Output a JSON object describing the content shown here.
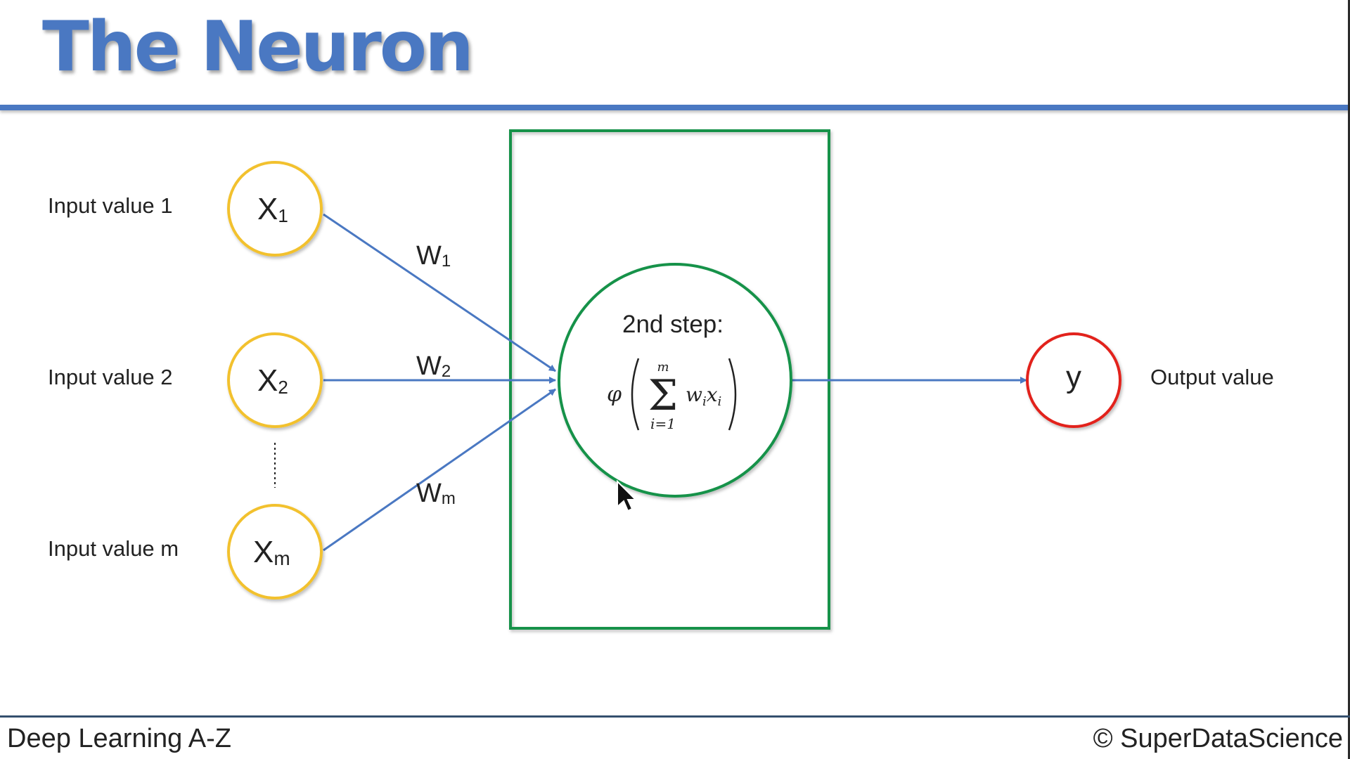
{
  "title": "The Neuron",
  "inputs": [
    {
      "label": "Input value 1",
      "var": "X",
      "sub": "1",
      "weight": "W",
      "weight_sub": "1"
    },
    {
      "label": "Input value 2",
      "var": "X",
      "sub": "2",
      "weight": "W",
      "weight_sub": "2"
    },
    {
      "label": "Input value m",
      "var": "X",
      "sub": "m",
      "weight": "W",
      "weight_sub": "m"
    }
  ],
  "neuron": {
    "step_label": "2nd step:",
    "formula": {
      "phi": "φ",
      "sigma": "Σ",
      "upper": "m",
      "lower": "i=1",
      "term_w": "w",
      "term_w_sub": "i",
      "term_x": "x",
      "term_x_sub": "i"
    }
  },
  "output": {
    "symbol": "y",
    "label": "Output value"
  },
  "footer": {
    "left": "Deep Learning A-Z",
    "right": "© SuperDataScience"
  },
  "colors": {
    "title": "#4a78c2",
    "arrow": "#4a78c2",
    "input_node": "#f2c12e",
    "neuron": "#129248",
    "box": "#129248",
    "output_node": "#e2231a"
  }
}
